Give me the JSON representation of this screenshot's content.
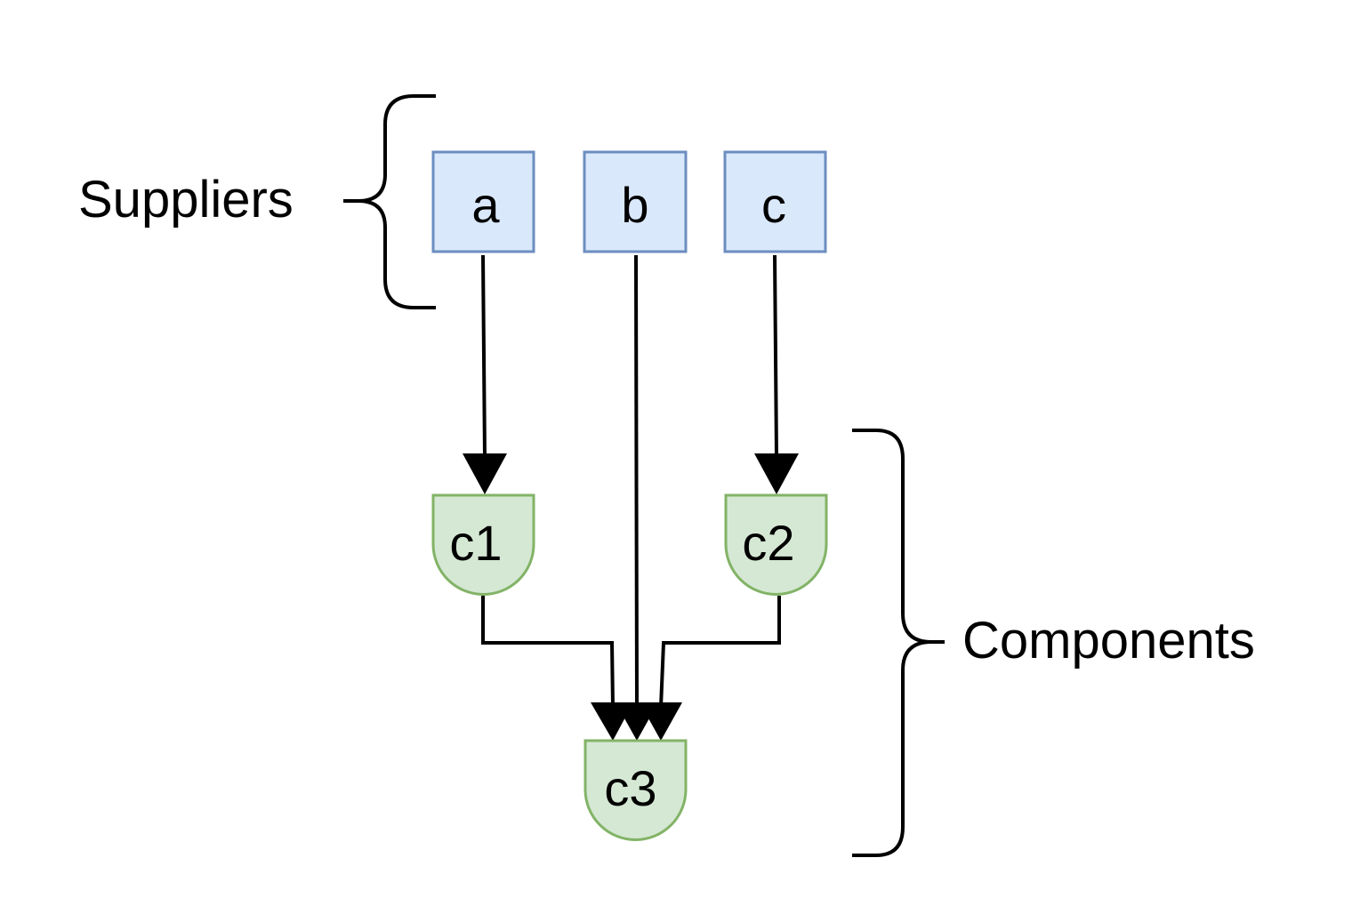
{
  "diagram": {
    "groups": {
      "suppliers": {
        "label": "Suppliers"
      },
      "components": {
        "label": "Components"
      }
    },
    "suppliers": [
      {
        "id": "a",
        "label": "a"
      },
      {
        "id": "b",
        "label": "b"
      },
      {
        "id": "c",
        "label": "c"
      }
    ],
    "components": [
      {
        "id": "c1",
        "label": "c1"
      },
      {
        "id": "c2",
        "label": "c2"
      },
      {
        "id": "c3",
        "label": "c3"
      }
    ],
    "edges": [
      {
        "from": "a",
        "to": "c1"
      },
      {
        "from": "c",
        "to": "c2"
      },
      {
        "from": "c1",
        "to": "c3"
      },
      {
        "from": "b",
        "to": "c3"
      },
      {
        "from": "c2",
        "to": "c3"
      }
    ],
    "colors": {
      "supplier_fill": "#dae8fc",
      "supplier_stroke": "#6c8ebf",
      "component_fill": "#d5e8d4",
      "component_stroke": "#82b366",
      "edge": "#000000"
    }
  }
}
